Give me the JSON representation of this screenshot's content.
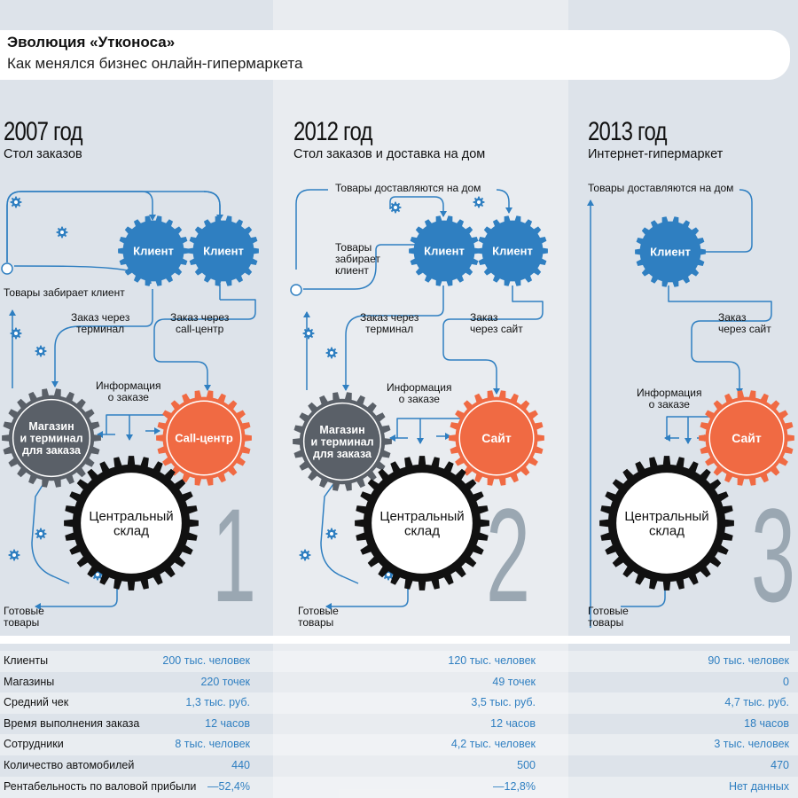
{
  "header": {
    "title": "Эволюция «Утконоса»",
    "subtitle": "Как менялся бизнес онлайн-гипермаркета"
  },
  "colors": {
    "client": "#2f7fc1",
    "store": "#5a6068",
    "channel": "#f06a43",
    "arrow": "#2f7fc1",
    "numeral": "#9aa7b2"
  },
  "periods": [
    {
      "year": "2007 год",
      "model": "Стол заказов",
      "numeral": "1",
      "clients": [
        "Клиент",
        "Клиент"
      ],
      "store": "Магазин\nи терминал\nдля заказа",
      "channel": "Call-центр",
      "warehouse": "Центральный\nсклад",
      "labels": {
        "pickup": "Товары забирает клиент",
        "order_terminal": "Заказ через\nтерминал",
        "order_channel": "Заказ через\ncall-центр",
        "info": "Информация\nо заказе",
        "goods": "Готовые\nтовары"
      }
    },
    {
      "year": "2012 год",
      "model": "Стол заказов и доставка на дом",
      "numeral": "2",
      "clients": [
        "Клиент",
        "Клиент"
      ],
      "store": "Магазин\nи терминал\nдля заказа",
      "channel": "Сайт",
      "warehouse": "Центральный\nсклад",
      "labels": {
        "delivery": "Товары доставляются на дом",
        "pickup": "Товары\nзабирает\nклиент",
        "order_terminal": "Заказ через\nтерминал",
        "order_channel": "Заказ\nчерез сайт",
        "info": "Информация\nо заказе",
        "goods": "Готовые\nтовары"
      }
    },
    {
      "year": "2013 год",
      "model": "Интернет-гипермаркет",
      "numeral": "3",
      "clients": [
        "Клиент"
      ],
      "channel": "Сайт",
      "warehouse": "Центральный\nсклад",
      "labels": {
        "delivery": "Товары доставляются на дом",
        "order_channel": "Заказ\nчерез сайт",
        "info": "Информация\nо заказе",
        "goods": "Готовые\nтовары"
      }
    }
  ],
  "table": {
    "rows": [
      {
        "name": "Клиенты",
        "values": [
          "200 тыс. человек",
          "120 тыс. человек",
          "90 тыс. человек"
        ]
      },
      {
        "name": "Магазины",
        "values": [
          "220 точек",
          "49 точек",
          "0"
        ]
      },
      {
        "name": "Средний чек",
        "values": [
          "1,3 тыс. руб.",
          "3,5 тыс. руб.",
          "4,7 тыс. руб."
        ]
      },
      {
        "name": "Время выполнения заказа",
        "values": [
          "12 часов",
          "12 часов",
          "18 часов"
        ]
      },
      {
        "name": "Сотрудники",
        "values": [
          "8 тыс. человек",
          "4,2 тыс. человек",
          "3 тыс. человек"
        ]
      },
      {
        "name": "Количество автомобилей",
        "values": [
          "440",
          "500",
          "470"
        ]
      },
      {
        "name": "Рентабельность по валовой прибыли",
        "values": [
          "—52,4%",
          "—12,8%",
          "Нет данных"
        ]
      }
    ]
  }
}
